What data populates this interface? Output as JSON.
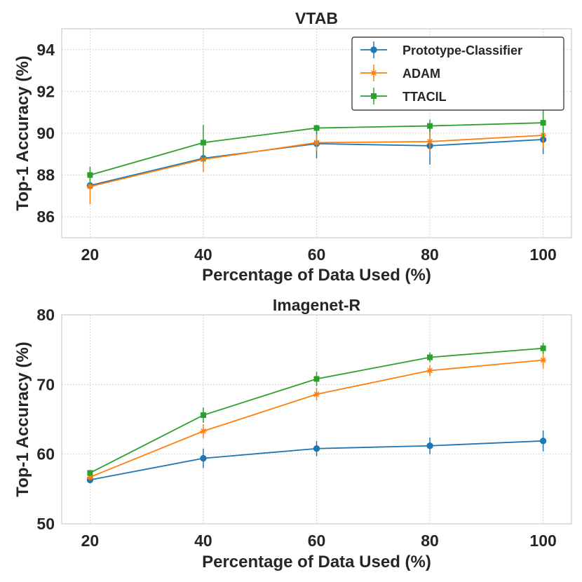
{
  "chart_data": [
    {
      "type": "line",
      "title": "VTAB",
      "xlabel": "Percentage of Data Used (%)",
      "ylabel": "Top-1 Accuracy (%)",
      "x": [
        20,
        40,
        60,
        80,
        100
      ],
      "xlim": [
        15,
        105
      ],
      "ylim": [
        85,
        95
      ],
      "xticks": [
        20,
        40,
        60,
        80,
        100
      ],
      "yticks": [
        86,
        88,
        90,
        92,
        94
      ],
      "grid": true,
      "legend": "top-right",
      "series": [
        {
          "name": "Prototype-Classifier",
          "color": "#1f77b4",
          "marker": "circle",
          "values": [
            87.5,
            88.8,
            89.5,
            89.4,
            89.7
          ],
          "errors": [
            0.2,
            0.2,
            0.7,
            0.9,
            0.7
          ]
        },
        {
          "name": "ADAM",
          "color": "#ff7f0e",
          "marker": "x",
          "values": [
            87.45,
            88.75,
            89.55,
            89.6,
            89.9
          ],
          "errors": [
            0.85,
            0.6,
            0.4,
            0.5,
            0.6
          ]
        },
        {
          "name": "TTACIL",
          "color": "#2ca02c",
          "marker": "square",
          "values": [
            88.0,
            89.55,
            90.25,
            90.35,
            90.5
          ],
          "errors": [
            0.4,
            0.85,
            0.15,
            0.3,
            0.75
          ]
        }
      ]
    },
    {
      "type": "line",
      "title": "Imagenet-R",
      "xlabel": "Percentage of Data Used (%)",
      "ylabel": "Top-1 Accuracy (%)",
      "x": [
        20,
        40,
        60,
        80,
        100
      ],
      "xlim": [
        15,
        105
      ],
      "ylim": [
        50,
        80
      ],
      "xticks": [
        20,
        40,
        60,
        80,
        100
      ],
      "yticks": [
        50,
        60,
        70,
        80
      ],
      "grid": true,
      "series": [
        {
          "name": "Prototype-Classifier",
          "color": "#1f77b4",
          "marker": "circle",
          "values": [
            56.3,
            59.4,
            60.8,
            61.2,
            61.9
          ],
          "errors": [
            0.3,
            1.4,
            1.1,
            1.2,
            1.5
          ]
        },
        {
          "name": "ADAM",
          "color": "#ff7f0e",
          "marker": "x",
          "values": [
            56.7,
            63.3,
            68.6,
            72.0,
            73.5
          ],
          "errors": [
            0.3,
            1.0,
            0.9,
            0.8,
            1.2
          ]
        },
        {
          "name": "TTACIL",
          "color": "#2ca02c",
          "marker": "square",
          "values": [
            57.3,
            65.6,
            70.8,
            73.9,
            75.2
          ],
          "errors": [
            0.3,
            1.1,
            1.0,
            0.7,
            0.8
          ]
        }
      ]
    }
  ]
}
